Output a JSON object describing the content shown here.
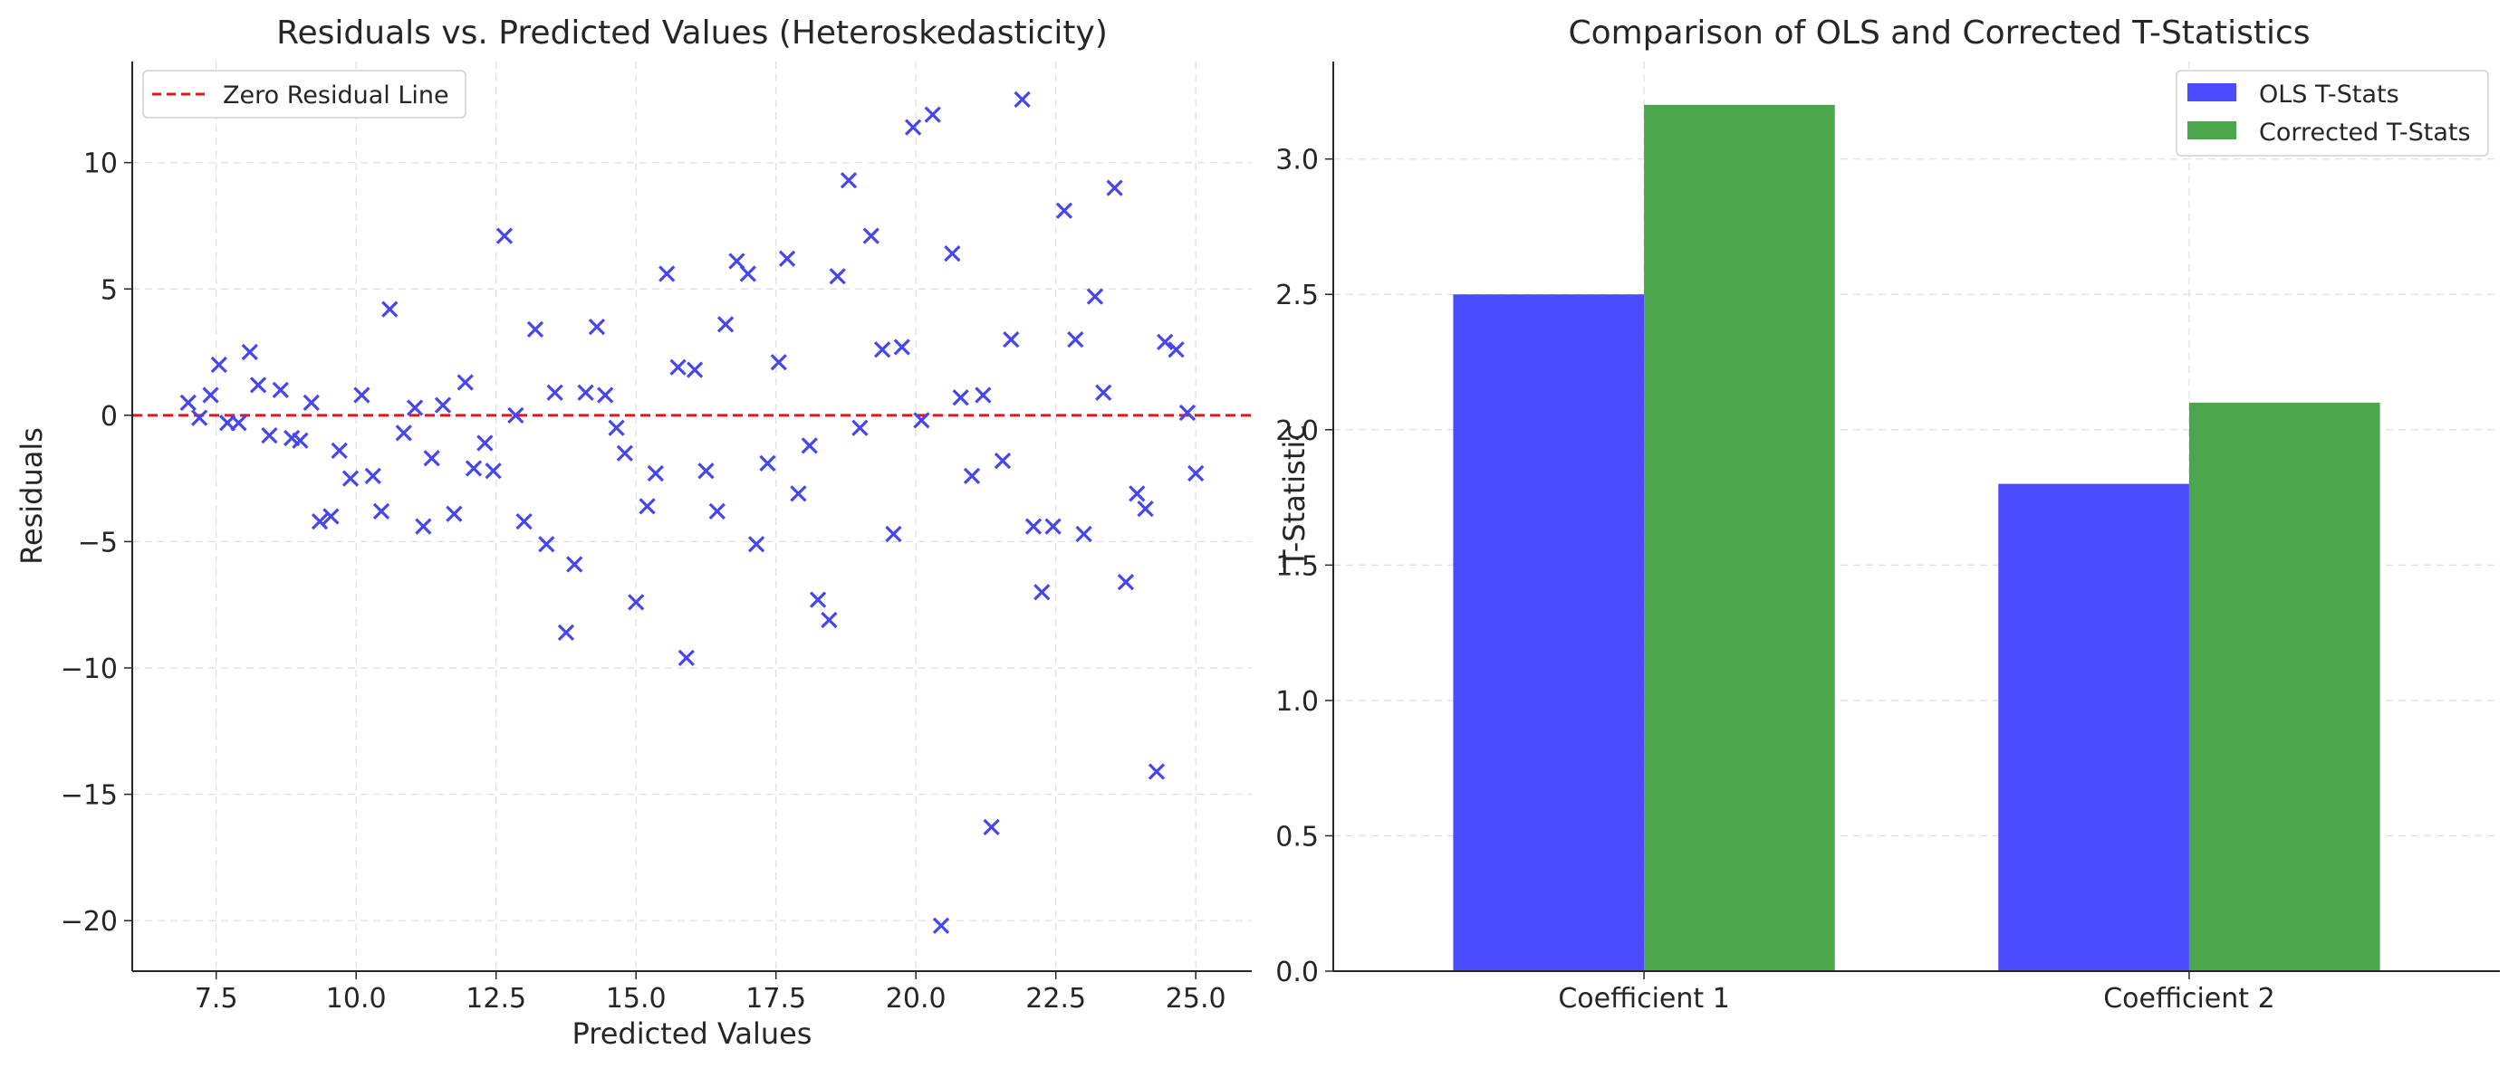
{
  "chart_data": [
    {
      "type": "scatter",
      "title": "Residuals vs. Predicted Values (Heteroskedasticity)",
      "xlabel": "Predicted Values",
      "ylabel": "Residuals",
      "xlim": [
        6.0,
        26.0
      ],
      "ylim": [
        -22.0,
        14.0
      ],
      "xticks": [
        7.5,
        10.0,
        12.5,
        15.0,
        17.5,
        20.0,
        22.5,
        25.0
      ],
      "xtick_labels": [
        "7.5",
        "10.0",
        "12.5",
        "15.0",
        "17.5",
        "20.0",
        "22.5",
        "25.0"
      ],
      "yticks": [
        -20,
        -15,
        -10,
        -5,
        0,
        5,
        10
      ],
      "ytick_labels": [
        "−20",
        "−15",
        "−10",
        "−5",
        "0",
        "5",
        "10"
      ],
      "grid": true,
      "legend_position": "top-left",
      "marker": "x",
      "marker_color": "#4646f0",
      "reference_line": {
        "name": "Zero Residual Line",
        "y": 0,
        "style": "dashed",
        "color": "#e8141b"
      },
      "points": [
        [
          7.0,
          0.5
        ],
        [
          7.2,
          -0.1
        ],
        [
          7.4,
          0.8
        ],
        [
          7.55,
          2.0
        ],
        [
          7.7,
          -0.3
        ],
        [
          7.9,
          -0.3
        ],
        [
          8.1,
          2.5
        ],
        [
          8.25,
          1.2
        ],
        [
          8.45,
          -0.8
        ],
        [
          8.65,
          1.0
        ],
        [
          8.85,
          -0.9
        ],
        [
          9.0,
          -1.0
        ],
        [
          9.2,
          0.5
        ],
        [
          9.35,
          -4.2
        ],
        [
          9.55,
          -4.0
        ],
        [
          9.7,
          -1.4
        ],
        [
          9.9,
          -2.5
        ],
        [
          10.1,
          0.8
        ],
        [
          10.3,
          -2.4
        ],
        [
          10.45,
          -3.8
        ],
        [
          10.6,
          4.2
        ],
        [
          10.85,
          -0.7
        ],
        [
          11.05,
          0.3
        ],
        [
          11.2,
          -4.4
        ],
        [
          11.35,
          -1.7
        ],
        [
          11.55,
          0.4
        ],
        [
          11.75,
          -3.9
        ],
        [
          11.95,
          1.3
        ],
        [
          12.1,
          -2.1
        ],
        [
          12.3,
          -1.1
        ],
        [
          12.45,
          -2.2
        ],
        [
          12.65,
          7.1
        ],
        [
          12.85,
          0.0
        ],
        [
          13.0,
          -4.2
        ],
        [
          13.2,
          3.4
        ],
        [
          13.4,
          -5.1
        ],
        [
          13.55,
          0.9
        ],
        [
          13.75,
          -8.6
        ],
        [
          13.9,
          -5.9
        ],
        [
          14.1,
          0.9
        ],
        [
          14.3,
          3.5
        ],
        [
          14.45,
          0.8
        ],
        [
          14.65,
          -0.5
        ],
        [
          14.8,
          -1.5
        ],
        [
          15.0,
          -7.4
        ],
        [
          15.2,
          -3.6
        ],
        [
          15.35,
          -2.3
        ],
        [
          15.55,
          5.6
        ],
        [
          15.75,
          1.9
        ],
        [
          15.9,
          -9.6
        ],
        [
          16.05,
          1.8
        ],
        [
          16.25,
          -2.2
        ],
        [
          16.45,
          -3.8
        ],
        [
          16.6,
          3.6
        ],
        [
          16.8,
          6.1
        ],
        [
          17.0,
          5.6
        ],
        [
          17.15,
          -5.1
        ],
        [
          17.35,
          -1.9
        ],
        [
          17.55,
          2.1
        ],
        [
          17.7,
          6.2
        ],
        [
          17.9,
          -3.1
        ],
        [
          18.1,
          -1.2
        ],
        [
          18.25,
          -7.3
        ],
        [
          18.45,
          -8.1
        ],
        [
          18.6,
          5.5
        ],
        [
          18.8,
          9.3
        ],
        [
          19.0,
          -0.5
        ],
        [
          19.2,
          7.1
        ],
        [
          19.4,
          2.6
        ],
        [
          19.6,
          -4.7
        ],
        [
          19.75,
          2.7
        ],
        [
          19.95,
          11.4
        ],
        [
          20.1,
          -0.2
        ],
        [
          20.3,
          11.9
        ],
        [
          20.45,
          -20.2
        ],
        [
          20.65,
          6.4
        ],
        [
          20.8,
          0.7
        ],
        [
          21.0,
          -2.4
        ],
        [
          21.2,
          0.8
        ],
        [
          21.35,
          -16.3
        ],
        [
          21.55,
          -1.8
        ],
        [
          21.7,
          3.0
        ],
        [
          21.9,
          12.5
        ],
        [
          22.1,
          -4.4
        ],
        [
          22.25,
          -7.0
        ],
        [
          22.45,
          -4.4
        ],
        [
          22.65,
          8.1
        ],
        [
          22.85,
          3.0
        ],
        [
          23.0,
          -4.7
        ],
        [
          23.2,
          4.7
        ],
        [
          23.35,
          0.9
        ],
        [
          23.55,
          9.0
        ],
        [
          23.75,
          -6.6
        ],
        [
          23.95,
          -3.1
        ],
        [
          24.1,
          -3.7
        ],
        [
          24.3,
          -14.1
        ],
        [
          24.45,
          2.9
        ],
        [
          24.65,
          2.6
        ],
        [
          24.85,
          0.1
        ],
        [
          25.0,
          -2.3
        ]
      ]
    },
    {
      "type": "bar",
      "title": "Comparison of OLS and Corrected T-Statistics",
      "xlabel": "",
      "ylabel": "T-Statistic",
      "categories": [
        "Coefficient 1",
        "Coefficient 2"
      ],
      "ylim": [
        0,
        3.36
      ],
      "yticks": [
        0.0,
        0.5,
        1.0,
        1.5,
        2.0,
        2.5,
        3.0
      ],
      "ytick_labels": [
        "0.0",
        "0.5",
        "1.0",
        "1.5",
        "2.0",
        "2.5",
        "3.0"
      ],
      "grid": true,
      "legend_position": "top-right",
      "series": [
        {
          "name": "OLS T-Stats",
          "values": [
            2.5,
            1.8
          ],
          "color": "#4b4bff"
        },
        {
          "name": "Corrected T-Stats",
          "values": [
            3.2,
            2.1
          ],
          "color": "#4ca64c"
        }
      ]
    }
  ]
}
